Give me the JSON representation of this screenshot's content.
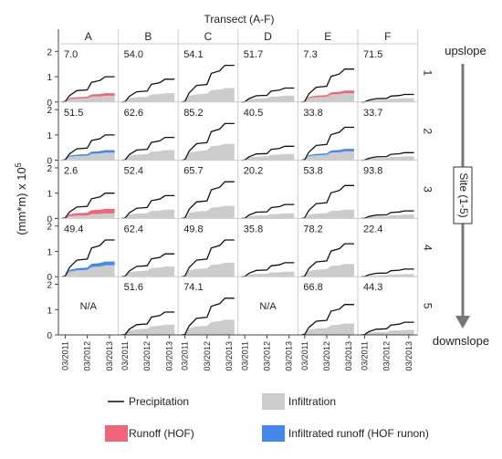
{
  "chart_data": {
    "type": "area",
    "title": "Transect (A-F)",
    "ylabel": "(mm*m) x 10",
    "ylabel_sup": "5",
    "ylim": [
      0,
      2.3
    ],
    "yticks": [
      "0",
      "1",
      "2"
    ],
    "xticks": [
      "03/2011",
      "03/2012",
      "03/2013"
    ],
    "columns": [
      "A",
      "B",
      "C",
      "D",
      "E",
      "F"
    ],
    "rows": [
      "1",
      "2",
      "3",
      "4",
      "5"
    ],
    "side_labels": {
      "top": "upslope",
      "bottom": "downslope",
      "axis": "Site (1-5)"
    },
    "legend": {
      "precipitation": "Precipitation",
      "infiltration": "Infiltration",
      "runoff": "Runoff (HOF)",
      "runon": "Infiltrated runoff (HOF runon)"
    },
    "colors": {
      "precipitation": "#111111",
      "infiltration": "#cccccc",
      "runoff": "#ee6677",
      "runon": "#4488ee"
    },
    "na_label": "N/A",
    "panels": [
      {
        "row": "1",
        "col": "A",
        "value": "7.0",
        "precip_total": 1.0,
        "infil_total": 0.25,
        "overlay": "runoff",
        "overlay_total": 0.35
      },
      {
        "row": "1",
        "col": "B",
        "value": "54.0",
        "precip_total": 0.9,
        "infil_total": 0.35,
        "overlay": "none",
        "overlay_total": 0
      },
      {
        "row": "1",
        "col": "C",
        "value": "54.1",
        "precip_total": 1.45,
        "infil_total": 0.55,
        "overlay": "none",
        "overlay_total": 0
      },
      {
        "row": "1",
        "col": "D",
        "value": "51.7",
        "precip_total": 0.55,
        "infil_total": 0.25,
        "overlay": "none",
        "overlay_total": 0
      },
      {
        "row": "1",
        "col": "E",
        "value": "7.3",
        "precip_total": 1.3,
        "infil_total": 0.35,
        "overlay": "runoff",
        "overlay_total": 0.45
      },
      {
        "row": "1",
        "col": "F",
        "value": "71.5",
        "precip_total": 0.3,
        "infil_total": 0.15,
        "overlay": "none",
        "overlay_total": 0
      },
      {
        "row": "2",
        "col": "A",
        "value": "51.5",
        "precip_total": 1.0,
        "infil_total": 0.3,
        "overlay": "runon",
        "overlay_total": 0.4
      },
      {
        "row": "2",
        "col": "B",
        "value": "62.6",
        "precip_total": 0.9,
        "infil_total": 0.4,
        "overlay": "none",
        "overlay_total": 0
      },
      {
        "row": "2",
        "col": "C",
        "value": "85.2",
        "precip_total": 1.45,
        "infil_total": 0.65,
        "overlay": "none",
        "overlay_total": 0
      },
      {
        "row": "2",
        "col": "D",
        "value": "40.5",
        "precip_total": 0.55,
        "infil_total": 0.25,
        "overlay": "none",
        "overlay_total": 0
      },
      {
        "row": "2",
        "col": "E",
        "value": "33.8",
        "precip_total": 1.3,
        "infil_total": 0.35,
        "overlay": "runon",
        "overlay_total": 0.45
      },
      {
        "row": "2",
        "col": "F",
        "value": "33.7",
        "precip_total": 0.3,
        "infil_total": 0.15,
        "overlay": "none",
        "overlay_total": 0
      },
      {
        "row": "3",
        "col": "A",
        "value": "2.6",
        "precip_total": 1.0,
        "infil_total": 0.2,
        "overlay": "runoff",
        "overlay_total": 0.38
      },
      {
        "row": "3",
        "col": "B",
        "value": "52.4",
        "precip_total": 0.9,
        "infil_total": 0.35,
        "overlay": "none",
        "overlay_total": 0
      },
      {
        "row": "3",
        "col": "C",
        "value": "65.7",
        "precip_total": 1.45,
        "infil_total": 0.5,
        "overlay": "none",
        "overlay_total": 0
      },
      {
        "row": "3",
        "col": "D",
        "value": "20.2",
        "precip_total": 0.55,
        "infil_total": 0.2,
        "overlay": "none",
        "overlay_total": 0
      },
      {
        "row": "3",
        "col": "E",
        "value": "53.8",
        "precip_total": 1.3,
        "infil_total": 0.35,
        "overlay": "none",
        "overlay_total": 0
      },
      {
        "row": "3",
        "col": "F",
        "value": "93.8",
        "precip_total": 0.3,
        "infil_total": 0.15,
        "overlay": "none",
        "overlay_total": 0
      },
      {
        "row": "4",
        "col": "A",
        "value": "49.4",
        "precip_total": 1.45,
        "infil_total": 0.45,
        "overlay": "runon",
        "overlay_total": 0.6
      },
      {
        "row": "4",
        "col": "B",
        "value": "62.4",
        "precip_total": 0.9,
        "infil_total": 0.4,
        "overlay": "none",
        "overlay_total": 0
      },
      {
        "row": "4",
        "col": "C",
        "value": "49.8",
        "precip_total": 1.45,
        "infil_total": 0.55,
        "overlay": "none",
        "overlay_total": 0
      },
      {
        "row": "4",
        "col": "D",
        "value": "35.8",
        "precip_total": 0.55,
        "infil_total": 0.2,
        "overlay": "none",
        "overlay_total": 0
      },
      {
        "row": "4",
        "col": "E",
        "value": "78.2",
        "precip_total": 1.3,
        "infil_total": 0.5,
        "overlay": "none",
        "overlay_total": 0
      },
      {
        "row": "4",
        "col": "F",
        "value": "22.4",
        "precip_total": 0.3,
        "infil_total": 0.1,
        "overlay": "none",
        "overlay_total": 0
      },
      {
        "row": "5",
        "col": "A",
        "value": "N/A",
        "precip_total": 0,
        "infil_total": 0,
        "overlay": "none",
        "overlay_total": 0
      },
      {
        "row": "5",
        "col": "B",
        "value": "51.6",
        "precip_total": 0.9,
        "infil_total": 0.4,
        "overlay": "none",
        "overlay_total": 0
      },
      {
        "row": "5",
        "col": "C",
        "value": "74.1",
        "precip_total": 1.45,
        "infil_total": 0.6,
        "overlay": "none",
        "overlay_total": 0
      },
      {
        "row": "5",
        "col": "D",
        "value": "N/A",
        "precip_total": 0,
        "infil_total": 0,
        "overlay": "none",
        "overlay_total": 0
      },
      {
        "row": "5",
        "col": "E",
        "value": "66.8",
        "precip_total": 1.2,
        "infil_total": 0.45,
        "overlay": "none",
        "overlay_total": 0
      },
      {
        "row": "5",
        "col": "F",
        "value": "44.3",
        "precip_total": 0.5,
        "infil_total": 0.2,
        "overlay": "none",
        "overlay_total": 0
      }
    ]
  }
}
